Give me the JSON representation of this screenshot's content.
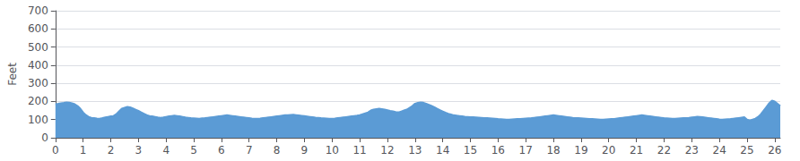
{
  "chart_data": {
    "type": "area",
    "ylabel": "Feet",
    "x": [
      0.0,
      0.1,
      0.2,
      0.3,
      0.4,
      0.5,
      0.6,
      0.7,
      0.8,
      0.9,
      1.0,
      1.1,
      1.2,
      1.3,
      1.4,
      1.5,
      1.6,
      1.7,
      1.8,
      1.9,
      2.0,
      2.1,
      2.2,
      2.3,
      2.4,
      2.5,
      2.6,
      2.7,
      2.8,
      2.9,
      3.0,
      3.1,
      3.2,
      3.3,
      3.4,
      3.5,
      3.6,
      3.7,
      3.8,
      3.9,
      4.0,
      4.1,
      4.2,
      4.3,
      4.4,
      4.5,
      4.6,
      4.7,
      4.8,
      4.9,
      5.0,
      5.1,
      5.2,
      5.3,
      5.4,
      5.5,
      5.6,
      5.7,
      5.8,
      5.9,
      6.0,
      6.1,
      6.2,
      6.3,
      6.4,
      6.5,
      6.6,
      6.7,
      6.8,
      6.9,
      7.0,
      7.1,
      7.2,
      7.3,
      7.4,
      7.5,
      7.6,
      7.7,
      7.8,
      7.9,
      8.0,
      8.1,
      8.2,
      8.3,
      8.4,
      8.5,
      8.6,
      8.7,
      8.8,
      8.9,
      9.0,
      9.1,
      9.2,
      9.3,
      9.4,
      9.5,
      9.6,
      9.7,
      9.8,
      9.9,
      10.0,
      10.1,
      10.2,
      10.3,
      10.4,
      10.5,
      10.6,
      10.7,
      10.8,
      10.9,
      11.0,
      11.1,
      11.2,
      11.3,
      11.4,
      11.5,
      11.6,
      11.7,
      11.8,
      11.9,
      12.0,
      12.1,
      12.2,
      12.3,
      12.4,
      12.5,
      12.6,
      12.7,
      12.8,
      12.9,
      13.0,
      13.1,
      13.2,
      13.3,
      13.4,
      13.5,
      13.6,
      13.7,
      13.8,
      13.9,
      14.0,
      14.1,
      14.2,
      14.3,
      14.4,
      14.5,
      14.6,
      14.7,
      14.8,
      14.9,
      15.0,
      15.1,
      15.2,
      15.3,
      15.4,
      15.5,
      15.6,
      15.7,
      15.8,
      15.9,
      16.0,
      16.1,
      16.2,
      16.3,
      16.4,
      16.5,
      16.6,
      16.7,
      16.8,
      16.9,
      17.0,
      17.1,
      17.2,
      17.3,
      17.4,
      17.5,
      17.6,
      17.7,
      17.8,
      17.9,
      18.0,
      18.1,
      18.2,
      18.3,
      18.4,
      18.5,
      18.6,
      18.7,
      18.8,
      18.9,
      19.0,
      19.1,
      19.2,
      19.3,
      19.4,
      19.5,
      19.6,
      19.7,
      19.8,
      19.9,
      20.0,
      20.1,
      20.2,
      20.3,
      20.4,
      20.5,
      20.6,
      20.7,
      20.8,
      20.9,
      21.0,
      21.1,
      21.2,
      21.3,
      21.4,
      21.5,
      21.6,
      21.7,
      21.8,
      21.9,
      22.0,
      22.1,
      22.2,
      22.3,
      22.4,
      22.5,
      22.6,
      22.7,
      22.8,
      22.9,
      23.0,
      23.1,
      23.2,
      23.3,
      23.4,
      23.5,
      23.6,
      23.7,
      23.8,
      23.9,
      24.0,
      24.1,
      24.2,
      24.3,
      24.4,
      24.5,
      24.6,
      24.7,
      24.8,
      24.9,
      25.0,
      25.1,
      25.2,
      25.3,
      25.4,
      25.5,
      25.6,
      25.7,
      25.8,
      25.9,
      26.0,
      26.2
    ],
    "values": [
      185,
      187,
      190,
      192,
      195,
      193,
      190,
      185,
      175,
      160,
      140,
      125,
      115,
      110,
      108,
      106,
      105,
      108,
      112,
      115,
      118,
      120,
      130,
      145,
      160,
      165,
      170,
      168,
      162,
      155,
      148,
      140,
      132,
      125,
      120,
      118,
      115,
      112,
      110,
      112,
      115,
      118,
      120,
      122,
      120,
      118,
      115,
      112,
      110,
      108,
      107,
      106,
      105,
      107,
      108,
      110,
      112,
      114,
      116,
      118,
      120,
      122,
      124,
      122,
      120,
      118,
      116,
      114,
      112,
      110,
      108,
      106,
      105,
      105,
      106,
      108,
      110,
      112,
      114,
      116,
      118,
      120,
      122,
      124,
      125,
      126,
      127,
      125,
      123,
      121,
      119,
      117,
      115,
      113,
      111,
      110,
      108,
      107,
      106,
      105,
      105,
      106,
      108,
      110,
      112,
      114,
      116,
      118,
      120,
      122,
      125,
      130,
      135,
      140,
      150,
      155,
      158,
      160,
      158,
      155,
      152,
      148,
      145,
      142,
      140,
      145,
      150,
      155,
      165,
      175,
      188,
      192,
      195,
      193,
      188,
      182,
      175,
      168,
      160,
      152,
      145,
      138,
      132,
      128,
      124,
      122,
      120,
      118,
      116,
      115,
      114,
      113,
      112,
      111,
      110,
      109,
      108,
      107,
      106,
      105,
      103,
      102,
      101,
      100,
      100,
      101,
      102,
      103,
      104,
      105,
      106,
      107,
      108,
      110,
      112,
      114,
      116,
      118,
      120,
      122,
      124,
      122,
      120,
      118,
      116,
      114,
      112,
      110,
      109,
      108,
      107,
      106,
      105,
      104,
      103,
      102,
      101,
      100,
      100,
      101,
      102,
      103,
      104,
      106,
      108,
      110,
      112,
      114,
      116,
      118,
      120,
      122,
      124,
      122,
      120,
      118,
      116,
      114,
      112,
      110,
      108,
      107,
      106,
      105,
      105,
      106,
      107,
      108,
      109,
      110,
      112,
      114,
      116,
      115,
      113,
      111,
      109,
      107,
      105,
      103,
      101,
      100,
      101,
      102,
      103,
      105,
      107,
      109,
      111,
      113,
      100,
      95,
      100,
      105,
      115,
      130,
      150,
      170,
      190,
      205,
      200,
      175
    ],
    "color": "#5b9bd5",
    "xlim": [
      0,
      26.2
    ],
    "ylim": [
      0,
      700
    ],
    "xticks": [
      0,
      1,
      2,
      3,
      4,
      5,
      6,
      7,
      8,
      9,
      10,
      11,
      12,
      13,
      14,
      15,
      16,
      17,
      18,
      19,
      20,
      21,
      22,
      23,
      24,
      25,
      26
    ],
    "yticks": [
      0,
      100,
      200,
      300,
      400,
      500,
      600,
      700
    ],
    "grid": true
  }
}
